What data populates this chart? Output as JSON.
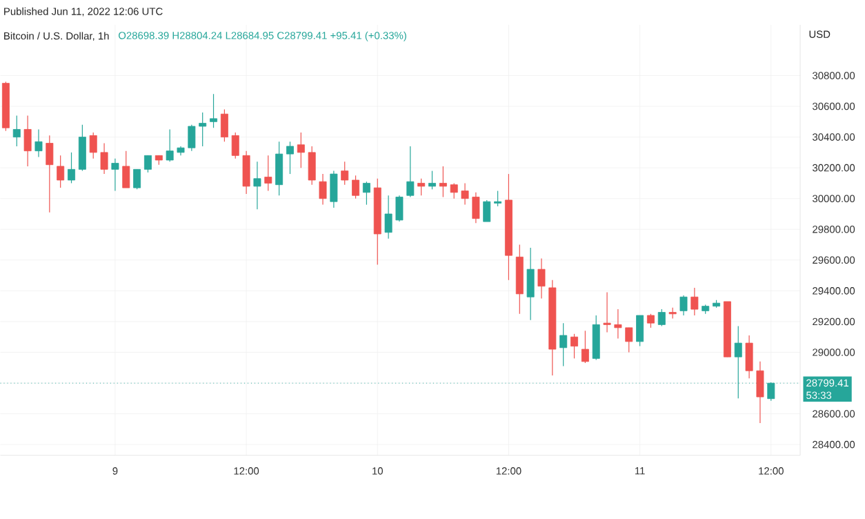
{
  "chart_data": {
    "type": "candlestick",
    "title": "Bitcoin / U.S. Dollar, 1h",
    "subtitle": "O28698.39 H28804.24 L28684.95 C28799.41 +95.41 (+0.33%)",
    "ylabel": "USD",
    "annotations": [
      "Published Jun 11, 2022 12:06 UTC",
      "53:33"
    ],
    "x": [
      "2022-06-08T14:00",
      "2022-06-08T15:00",
      "2022-06-08T16:00",
      "2022-06-08T17:00",
      "2022-06-08T18:00",
      "2022-06-08T19:00",
      "2022-06-08T20:00",
      "2022-06-08T21:00",
      "2022-06-08T22:00",
      "2022-06-08T23:00",
      "2022-06-09T00:00",
      "2022-06-09T01:00",
      "2022-06-09T02:00",
      "2022-06-09T03:00",
      "2022-06-09T04:00",
      "2022-06-09T05:00",
      "2022-06-09T06:00",
      "2022-06-09T07:00",
      "2022-06-09T08:00",
      "2022-06-09T09:00",
      "2022-06-09T10:00",
      "2022-06-09T11:00",
      "2022-06-09T12:00",
      "2022-06-09T13:00",
      "2022-06-09T14:00",
      "2022-06-09T15:00",
      "2022-06-09T16:00",
      "2022-06-09T17:00",
      "2022-06-09T18:00",
      "2022-06-09T19:00",
      "2022-06-09T20:00",
      "2022-06-09T21:00",
      "2022-06-09T22:00",
      "2022-06-09T23:00",
      "2022-06-10T00:00",
      "2022-06-10T01:00",
      "2022-06-10T02:00",
      "2022-06-10T03:00",
      "2022-06-10T04:00",
      "2022-06-10T05:00",
      "2022-06-10T06:00",
      "2022-06-10T07:00",
      "2022-06-10T08:00",
      "2022-06-10T09:00",
      "2022-06-10T10:00",
      "2022-06-10T11:00",
      "2022-06-10T12:00",
      "2022-06-10T13:00",
      "2022-06-10T14:00",
      "2022-06-10T15:00",
      "2022-06-10T16:00",
      "2022-06-10T17:00",
      "2022-06-10T18:00",
      "2022-06-10T19:00",
      "2022-06-10T20:00",
      "2022-06-10T21:00",
      "2022-06-10T22:00",
      "2022-06-10T23:00",
      "2022-06-11T00:00",
      "2022-06-11T01:00",
      "2022-06-11T02:00",
      "2022-06-11T03:00",
      "2022-06-11T04:00",
      "2022-06-11T05:00",
      "2022-06-11T06:00",
      "2022-06-11T07:00",
      "2022-06-11T08:00",
      "2022-06-11T09:00",
      "2022-06-11T10:00",
      "2022-06-11T11:00",
      "2022-06-11T12:00"
    ],
    "ohlc": [
      [
        30750,
        30760,
        30440,
        30460
      ],
      [
        30400,
        30540,
        30340,
        30450
      ],
      [
        30450,
        30540,
        30210,
        30310
      ],
      [
        30310,
        30450,
        30270,
        30370
      ],
      [
        30360,
        30410,
        29910,
        30220
      ],
      [
        30210,
        30280,
        30070,
        30120
      ],
      [
        30120,
        30300,
        30100,
        30190
      ],
      [
        30190,
        30480,
        30180,
        30400
      ],
      [
        30410,
        30430,
        30260,
        30300
      ],
      [
        30300,
        30360,
        30160,
        30190
      ],
      [
        30190,
        30260,
        30050,
        30230
      ],
      [
        30210,
        30310,
        30070,
        30070
      ],
      [
        30070,
        30190,
        30060,
        30190
      ],
      [
        30190,
        30280,
        30170,
        30280
      ],
      [
        30280,
        30280,
        30220,
        30250
      ],
      [
        30250,
        30450,
        30240,
        30310
      ],
      [
        30300,
        30340,
        30280,
        30330
      ],
      [
        30330,
        30480,
        30310,
        30470
      ],
      [
        30470,
        30560,
        30340,
        30490
      ],
      [
        30500,
        30680,
        30460,
        30520
      ],
      [
        30550,
        30580,
        30370,
        30400
      ],
      [
        30410,
        30430,
        30260,
        30280
      ],
      [
        30280,
        30310,
        30030,
        30080
      ],
      [
        30080,
        30240,
        29930,
        30130
      ],
      [
        30140,
        30280,
        30050,
        30100
      ],
      [
        30090,
        30370,
        30020,
        30290
      ],
      [
        30290,
        30370,
        30160,
        30340
      ],
      [
        30350,
        30430,
        30200,
        30300
      ],
      [
        30300,
        30340,
        30090,
        30120
      ],
      [
        30110,
        30160,
        29960,
        30000
      ],
      [
        29980,
        30180,
        29940,
        30160
      ],
      [
        30180,
        30240,
        30090,
        30120
      ],
      [
        30120,
        30150,
        30000,
        30020
      ],
      [
        30040,
        30110,
        29960,
        30100
      ],
      [
        30070,
        30130,
        29570,
        29770
      ],
      [
        29780,
        30020,
        29740,
        29900
      ],
      [
        29860,
        30020,
        29850,
        30010
      ],
      [
        30020,
        30340,
        30010,
        30110
      ],
      [
        30100,
        30130,
        30020,
        30080
      ],
      [
        30080,
        30180,
        30060,
        30100
      ],
      [
        30100,
        30210,
        30010,
        30080
      ],
      [
        30090,
        30100,
        30000,
        30040
      ],
      [
        30050,
        30100,
        29960,
        30000
      ],
      [
        30010,
        30040,
        29840,
        29870
      ],
      [
        29850,
        29990,
        29850,
        29980
      ],
      [
        29970,
        30050,
        29950,
        29980
      ],
      [
        29990,
        30160,
        29470,
        29630
      ],
      [
        29620,
        29700,
        29250,
        29380
      ],
      [
        29360,
        29680,
        29210,
        29540
      ],
      [
        29540,
        29610,
        29350,
        29430
      ],
      [
        29420,
        29470,
        28850,
        29020
      ],
      [
        29030,
        29190,
        28910,
        29110
      ],
      [
        29100,
        29120,
        28960,
        29040
      ],
      [
        29020,
        29140,
        28930,
        28940
      ],
      [
        28960,
        29240,
        28950,
        29180
      ],
      [
        29190,
        29390,
        29130,
        29180
      ],
      [
        29180,
        29280,
        29090,
        29160
      ],
      [
        29160,
        29160,
        29000,
        29070
      ],
      [
        29070,
        29240,
        29040,
        29240
      ],
      [
        29240,
        29250,
        29160,
        29190
      ],
      [
        29180,
        29280,
        29170,
        29260
      ],
      [
        29260,
        29290,
        29220,
        29250
      ],
      [
        29270,
        29370,
        29240,
        29360
      ],
      [
        29360,
        29420,
        29240,
        29280
      ],
      [
        29270,
        29310,
        29250,
        29300
      ],
      [
        29300,
        29340,
        29290,
        29320
      ],
      [
        29330,
        29330,
        28970,
        28970
      ],
      [
        28970,
        29170,
        28700,
        29060
      ],
      [
        29060,
        29110,
        28830,
        28880
      ],
      [
        28880,
        28940,
        28540,
        28710
      ],
      [
        28698.39,
        28804.24,
        28684.95,
        28799.41
      ]
    ],
    "colors": [
      "#ef5350",
      "#26a69a",
      "#ef5350",
      "#26a69a",
      "#ef5350",
      "#ef5350",
      "#26a69a",
      "#26a69a",
      "#ef5350",
      "#ef5350",
      "#26a69a",
      "#ef5350",
      "#26a69a",
      "#26a69a",
      "#ef5350",
      "#26a69a",
      "#26a69a",
      "#26a69a",
      "#26a69a",
      "#26a69a",
      "#ef5350",
      "#ef5350",
      "#ef5350",
      "#26a69a",
      "#ef5350",
      "#26a69a",
      "#26a69a",
      "#ef5350",
      "#ef5350",
      "#ef5350",
      "#26a69a",
      "#ef5350",
      "#ef5350",
      "#26a69a",
      "#ef5350",
      "#26a69a",
      "#26a69a",
      "#26a69a",
      "#ef5350",
      "#26a69a",
      "#ef5350",
      "#ef5350",
      "#ef5350",
      "#ef5350",
      "#26a69a",
      "#26a69a",
      "#ef5350",
      "#ef5350",
      "#26a69a",
      "#ef5350",
      "#ef5350",
      "#26a69a",
      "#ef5350",
      "#ef5350",
      "#26a69a",
      "#ef5350",
      "#ef5350",
      "#ef5350",
      "#26a69a",
      "#ef5350",
      "#26a69a",
      "#ef5350",
      "#26a69a",
      "#ef5350",
      "#26a69a",
      "#26a69a",
      "#ef5350",
      "#26a69a",
      "#ef5350",
      "#ef5350",
      "#26a69a"
    ],
    "xlim": [
      "2022-06-08T13:30",
      "2022-06-11T14:40"
    ],
    "xticks": [
      {
        "value": "2022-06-09T00:00",
        "label": "9"
      },
      {
        "value": "2022-06-09T12:00",
        "label": "12:00"
      },
      {
        "value": "2022-06-10T00:00",
        "label": "10"
      },
      {
        "value": "2022-06-10T12:00",
        "label": "12:00"
      },
      {
        "value": "2022-06-11T00:00",
        "label": "11"
      },
      {
        "value": "2022-06-11T12:00",
        "label": "12:00"
      }
    ],
    "ylim": [
      28330,
      31130
    ],
    "yticks": [
      {
        "value": 28400,
        "label": "28400.00"
      },
      {
        "value": 28600,
        "label": "28600.00"
      },
      {
        "value": 28800,
        "label": null
      },
      {
        "value": 29000,
        "label": "29000.00"
      },
      {
        "value": 29200,
        "label": "29200.00"
      },
      {
        "value": 29400,
        "label": "29400.00"
      },
      {
        "value": 29600,
        "label": "29600.00"
      },
      {
        "value": 29800,
        "label": "29800.00"
      },
      {
        "value": 30000,
        "label": "30000.00"
      },
      {
        "value": 30200,
        "label": "30200.00"
      },
      {
        "value": 30400,
        "label": "30400.00"
      },
      {
        "value": 30600,
        "label": "30600.00"
      },
      {
        "value": 30800,
        "label": "30800.00"
      }
    ],
    "grid": true,
    "ref_lines": [
      {
        "axis": "y",
        "value": 28799.41,
        "label": "28799.41",
        "color": "#26a69a",
        "line_style": "dotted"
      }
    ]
  }
}
